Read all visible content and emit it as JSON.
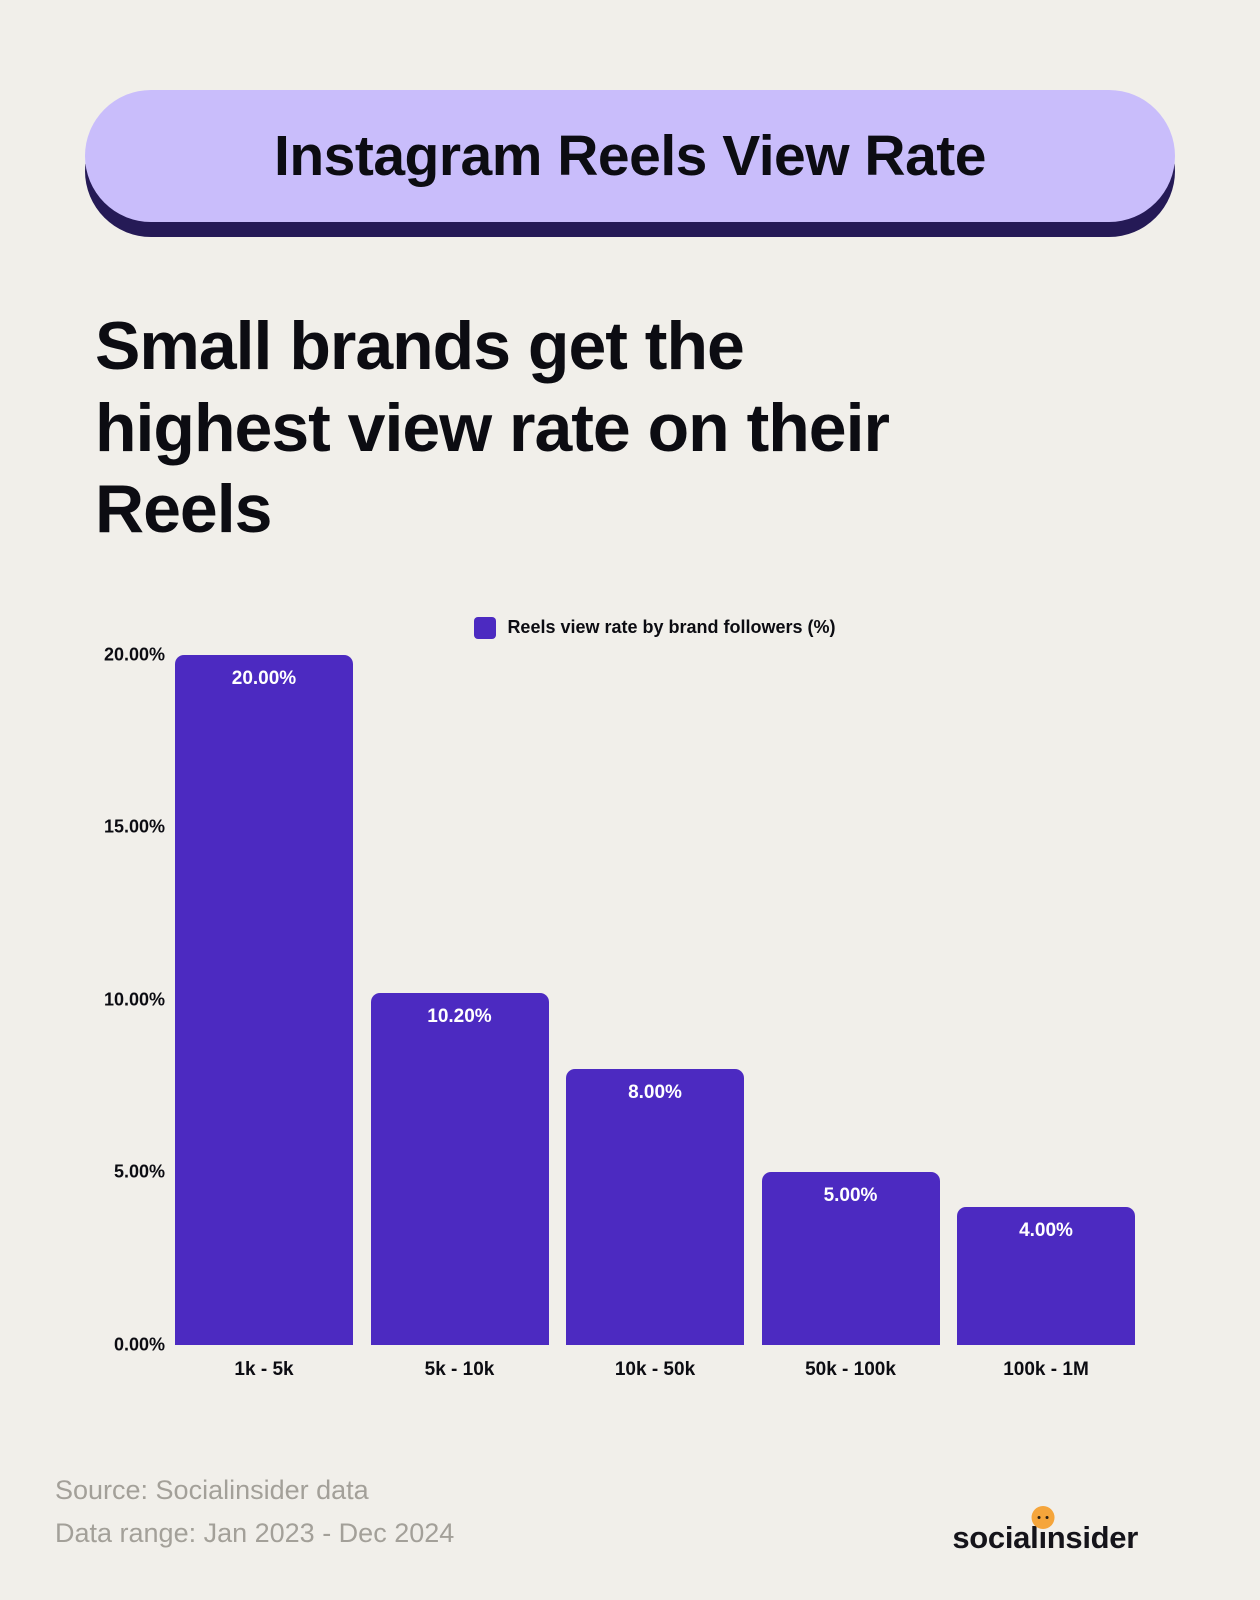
{
  "page": {
    "badge_title": "Instagram Reels View Rate",
    "headline_lines": [
      "Small brands get the",
      "highest view rate on their",
      "Reels"
    ]
  },
  "chart_data": {
    "type": "bar",
    "title": "Reels view rate by brand followers (%)",
    "legend": {
      "label": "Reels view rate by brand followers (%)",
      "position": "top-center"
    },
    "categories": [
      "1k - 5k",
      "5k - 10k",
      "10k - 50k",
      "50k - 100k",
      "100k - 1M"
    ],
    "values": [
      20.0,
      10.2,
      8.0,
      5.0,
      4.0
    ],
    "value_labels": [
      "20.00%",
      "10.20%",
      "8.00%",
      "5.00%",
      "4.00%"
    ],
    "xlabel": "",
    "ylabel": "",
    "ylim": [
      0,
      20
    ],
    "grid": false,
    "yticks": [
      {
        "value": 20,
        "label": "20.00%"
      },
      {
        "value": 15,
        "label": "15.00%"
      },
      {
        "value": 10,
        "label": "10.00%"
      },
      {
        "value": 5,
        "label": "5.00%"
      },
      {
        "value": 0,
        "label": "0.00%"
      }
    ],
    "bar_color": "#4c2ac1"
  },
  "footer": {
    "source": "Source: Socialinsider data",
    "data_range": "Data range: Jan 2023 - Dec 2024",
    "brand_left": "social",
    "brand_i_char": "ı",
    "brand_right": "nsider"
  },
  "colors": {
    "background": "#f1efea",
    "badge_bg": "#c9bdfb",
    "badge_shadow": "#251a56",
    "bar": "#4c2ac1",
    "accent_orange": "#f5a53b",
    "value_label_text": "#ffffff",
    "muted_text": "#a3a099",
    "ink": "#0c0c12"
  }
}
